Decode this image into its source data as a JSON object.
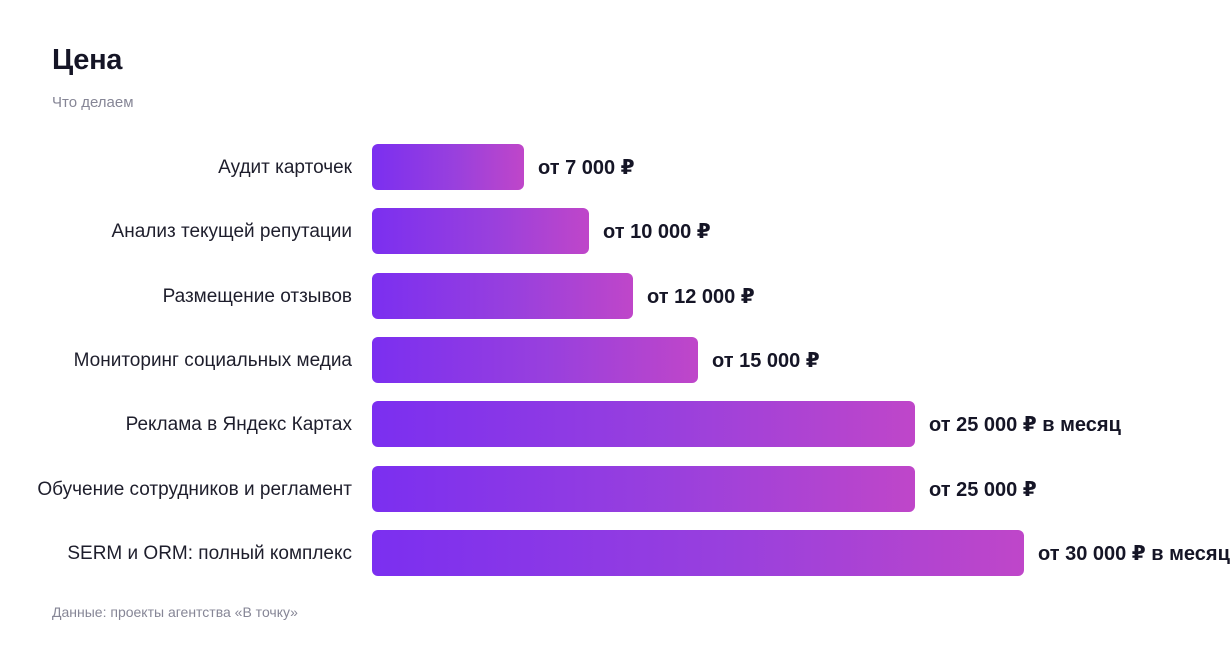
{
  "header": {
    "title": "Цена",
    "subtitle": "Что делаем"
  },
  "footer": {
    "source": "Данные: проекты агентства «В точку»"
  },
  "colors": {
    "bar_start": "#7b2ff0",
    "bar_end": "#bf46c9",
    "text": "#1e1e2c",
    "muted": "#868696"
  },
  "chart_data": {
    "type": "bar",
    "orientation": "horizontal",
    "title": "Цена",
    "subtitle": "Что делаем",
    "xlim": [
      0,
      30000
    ],
    "grid": false,
    "categories": [
      "Аудит карточек",
      "Анализ текущей репутации",
      "Размещение отзывов",
      "Мониторинг социальных медиа",
      "Реклама в Яндекс Картах",
      "Обучение сотрудников и регламент",
      "SERM и ORM: полный комплекс"
    ],
    "values": [
      7000,
      10000,
      12000,
      15000,
      25000,
      25000,
      30000
    ],
    "data_labels": [
      "от 7 000 ₽",
      "от 10 000 ₽",
      "от 12 000 ₽",
      "от 15 000 ₽",
      "от 25 000 ₽ в месяц",
      "от 25 000 ₽",
      "от 30 000 ₽ в месяц"
    ]
  }
}
